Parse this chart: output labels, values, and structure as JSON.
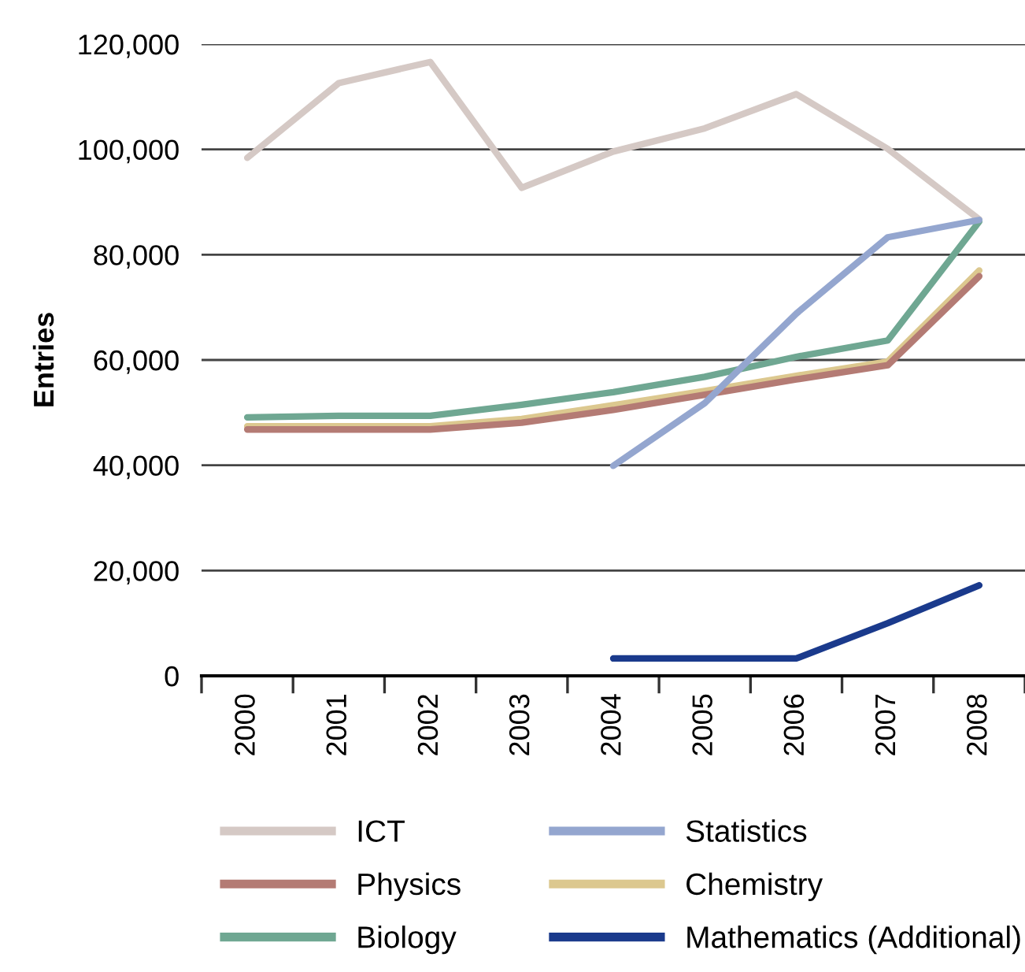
{
  "chart_data": {
    "type": "line",
    "ylabel": "Entries",
    "categories": [
      "2000",
      "2001",
      "2002",
      "2003",
      "2004",
      "2005",
      "2006",
      "2007",
      "2008"
    ],
    "series": [
      {
        "name": "ICT",
        "color": "#d5c9c5",
        "values": [
          98400,
          112600,
          116600,
          92700,
          99600,
          104000,
          110500,
          100100,
          86700
        ]
      },
      {
        "name": "Biology",
        "color": "#6fa792",
        "values": [
          49100,
          49400,
          49400,
          51500,
          53900,
          56800,
          60600,
          63700,
          86300
        ]
      },
      {
        "name": "Chemistry",
        "color": "#dcc88f",
        "values": [
          47400,
          47400,
          47400,
          48800,
          51400,
          54100,
          57000,
          59700,
          77000
        ]
      },
      {
        "name": "Physics",
        "color": "#b47b74",
        "values": [
          46800,
          46800,
          46800,
          48100,
          50500,
          53400,
          56300,
          59000,
          75900
        ]
      },
      {
        "name": "Statistics",
        "color": "#94a6cf",
        "values": [
          null,
          null,
          null,
          null,
          39900,
          51800,
          68800,
          83300,
          86600
        ]
      },
      {
        "name": "Mathematics (Additional)",
        "color": "#1a3a8c",
        "values": [
          null,
          null,
          null,
          null,
          3300,
          3300,
          3300,
          10000,
          17200
        ]
      }
    ],
    "ylim": [
      0,
      120000
    ],
    "yticks": [
      {
        "value": 0,
        "label": "0"
      },
      {
        "value": 20000,
        "label": "20,000"
      },
      {
        "value": 40000,
        "label": "40,000"
      },
      {
        "value": 60000,
        "label": "60,000"
      },
      {
        "value": 80000,
        "label": "80,000"
      },
      {
        "value": 100000,
        "label": "100,000"
      },
      {
        "value": 120000,
        "label": "120,000"
      }
    ],
    "grid": "y",
    "legend": "bottom",
    "marker": "none",
    "line_style": "solid"
  }
}
